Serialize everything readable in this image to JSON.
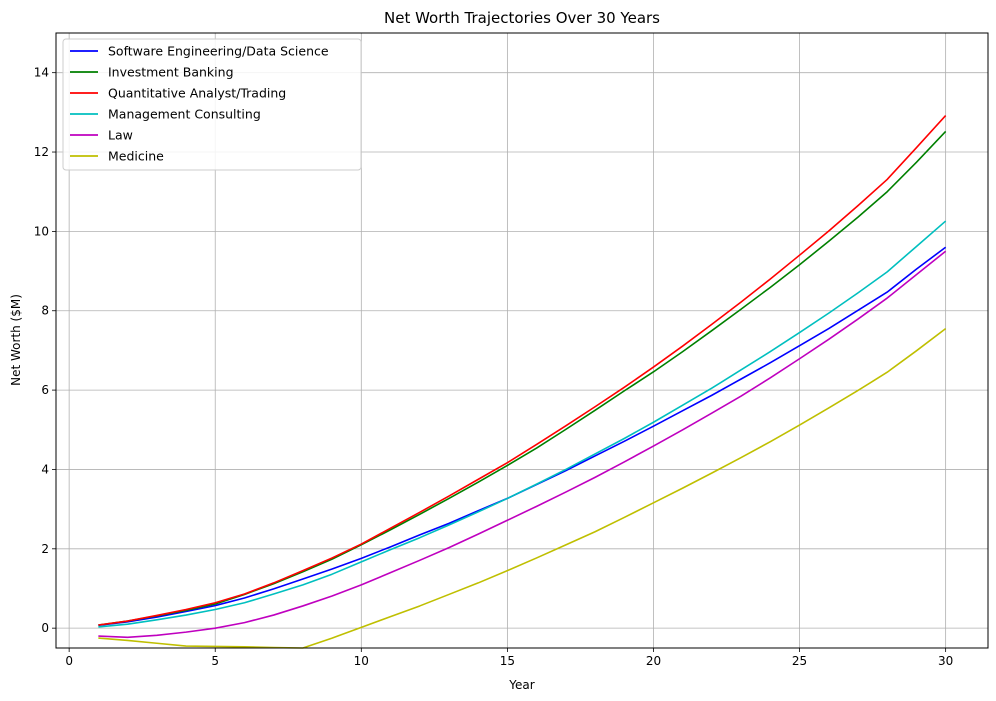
{
  "chart_data": {
    "type": "line",
    "title": "Net Worth Trajectories Over 30 Years",
    "xlabel": "Year",
    "ylabel": "Net Worth ($M)",
    "xlim": [
      -0.45,
      31.45
    ],
    "ylim": [
      -0.5,
      15.0
    ],
    "xticks": [
      0,
      5,
      10,
      15,
      20,
      25,
      30
    ],
    "yticks": [
      0,
      2,
      4,
      6,
      8,
      10,
      12,
      14
    ],
    "grid": true,
    "legend_position": "upper-left",
    "x": [
      1,
      2,
      3,
      4,
      5,
      6,
      7,
      8,
      9,
      10,
      11,
      12,
      13,
      14,
      15,
      16,
      17,
      18,
      19,
      20,
      21,
      22,
      23,
      24,
      25,
      26,
      27,
      28,
      29,
      30
    ],
    "series": [
      {
        "name": "Software Engineering/Data Science",
        "color": "#0000ff",
        "values": [
          0.07,
          0.16,
          0.28,
          0.42,
          0.57,
          0.76,
          0.99,
          1.24,
          1.49,
          1.76,
          2.05,
          2.35,
          2.64,
          2.96,
          3.27,
          3.62,
          3.97,
          4.34,
          4.71,
          5.09,
          5.48,
          5.87,
          6.28,
          6.69,
          7.12,
          7.55,
          8.01,
          8.47,
          9.05,
          9.6
        ]
      },
      {
        "name": "Investment Banking",
        "color": "#008000",
        "values": [
          0.08,
          0.18,
          0.31,
          0.45,
          0.61,
          0.85,
          1.12,
          1.42,
          1.74,
          2.1,
          2.48,
          2.87,
          3.27,
          3.68,
          4.1,
          4.54,
          5.01,
          5.49,
          5.98,
          6.46,
          6.97,
          7.5,
          8.04,
          8.59,
          9.16,
          9.75,
          10.36,
          11.0,
          11.74,
          12.52
        ]
      },
      {
        "name": "Quantitative Analyst/Trading",
        "color": "#ff0000",
        "values": [
          0.08,
          0.18,
          0.32,
          0.47,
          0.64,
          0.86,
          1.14,
          1.45,
          1.77,
          2.12,
          2.52,
          2.92,
          3.33,
          3.75,
          4.17,
          4.63,
          5.1,
          5.58,
          6.07,
          6.58,
          7.11,
          7.66,
          8.22,
          8.8,
          9.4,
          10.01,
          10.65,
          11.31,
          12.11,
          12.92
        ]
      },
      {
        "name": "Management Consulting",
        "color": "#00bfbf",
        "values": [
          0.03,
          0.1,
          0.21,
          0.33,
          0.47,
          0.64,
          0.86,
          1.09,
          1.36,
          1.67,
          1.98,
          2.28,
          2.6,
          2.93,
          3.27,
          3.63,
          4.0,
          4.39,
          4.78,
          5.19,
          5.62,
          6.05,
          6.51,
          6.97,
          7.45,
          7.94,
          8.45,
          8.98,
          9.62,
          10.26
        ]
      },
      {
        "name": "Law",
        "color": "#bf00bf",
        "values": [
          -0.2,
          -0.23,
          -0.18,
          -0.1,
          0.0,
          0.14,
          0.33,
          0.56,
          0.81,
          1.09,
          1.4,
          1.71,
          2.03,
          2.37,
          2.72,
          3.07,
          3.43,
          3.8,
          4.19,
          4.59,
          5.0,
          5.42,
          5.85,
          6.31,
          6.79,
          7.28,
          7.79,
          8.32,
          8.91,
          9.5
        ]
      },
      {
        "name": "Medicine",
        "color": "#bfbf00",
        "values": [
          -0.25,
          -0.31,
          -0.38,
          -0.45,
          -0.46,
          -0.47,
          -0.49,
          -0.5,
          -0.25,
          0.02,
          0.29,
          0.56,
          0.85,
          1.14,
          1.45,
          1.77,
          2.1,
          2.43,
          2.79,
          3.16,
          3.53,
          3.91,
          4.3,
          4.7,
          5.12,
          5.55,
          5.99,
          6.45,
          6.99,
          7.55
        ]
      }
    ]
  }
}
